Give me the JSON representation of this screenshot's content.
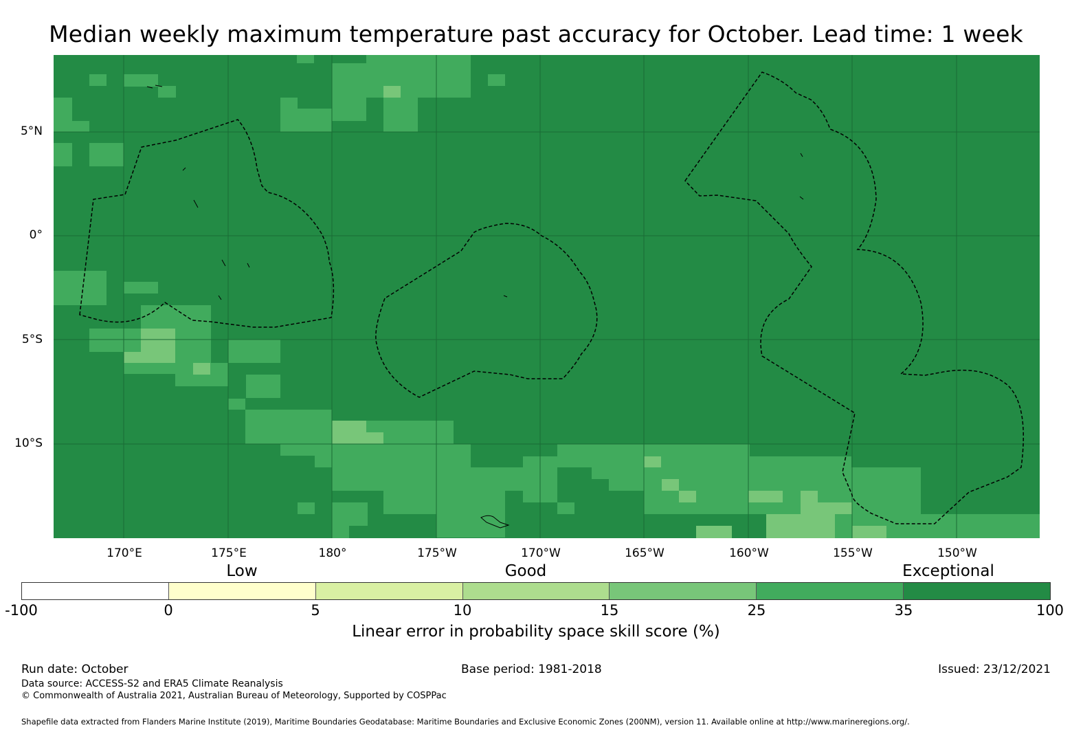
{
  "title": "Median weekly maximum temperature past accuracy for October. Lead time: 1 week",
  "map": {
    "background_color": "#238b45",
    "latitude_labels": [
      "5°N",
      "0°",
      "5°S",
      "10°S"
    ],
    "longitude_labels": [
      "170°E",
      "175°E",
      "180°",
      "175°W",
      "170°W",
      "165°W",
      "160°W",
      "155°W",
      "150°W"
    ]
  },
  "legend": {
    "categories": [
      "Low",
      "Good",
      "Exceptional"
    ],
    "ticks": [
      "-100",
      "0",
      "5",
      "10",
      "15",
      "25",
      "35",
      "100"
    ],
    "colors": [
      "#ffffff",
      "#ffffcc",
      "#d9f0a3",
      "#addd8e",
      "#78c679",
      "#41ab5d",
      "#238b45"
    ],
    "title": "Linear error in probability space skill score (%)"
  },
  "footer": {
    "run_date": "Run date: October",
    "base_period": "Base period: 1981-2018",
    "issued": "Issued: 23/12/2021",
    "data_source": "Data source: ACCESS-S2 and ERA5 Climate Reanalysis",
    "copyright": "© Commonwealth of Australia 2021, Australian Bureau of Meteorology, Supported by COSPPac",
    "shapefile": "Shapefile data extracted from Flanders Marine Institute (2019), Maritime Boundaries Geodatabase: Maritime Boundaries and Exclusive Economic Zones (200NM), version 11. Available online at http://www.marineregions.org/."
  }
}
